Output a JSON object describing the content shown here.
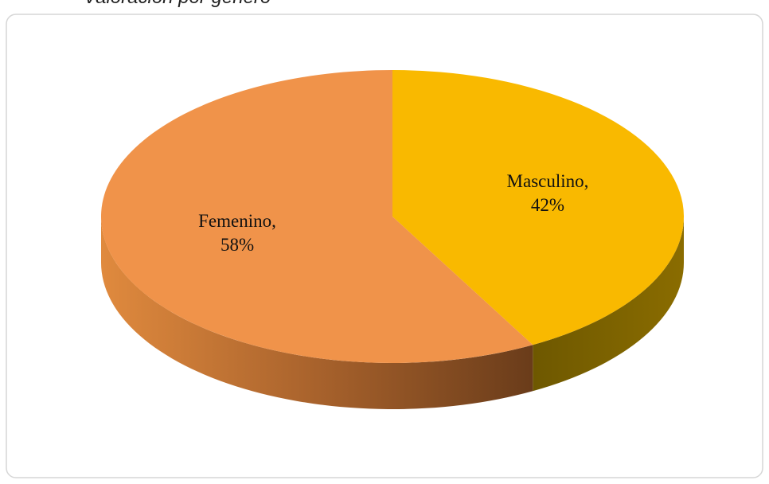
{
  "chart_data": {
    "type": "pie",
    "title": "Valoración por género",
    "categories": [
      "Masculino",
      "Femenino"
    ],
    "values": [
      42,
      58
    ],
    "value_labels": [
      "Masculino, 42%",
      "Femenino, 58%"
    ],
    "colors": [
      "#f9b900",
      "#f0934a"
    ]
  }
}
